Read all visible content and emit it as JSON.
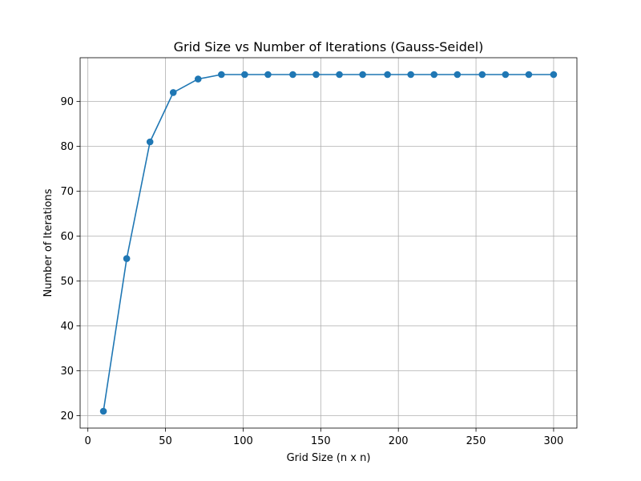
{
  "chart_data": {
    "type": "line",
    "title": "Grid Size vs Number of Iterations (Gauss-Seidel)",
    "xlabel": "Grid Size (n x n)",
    "ylabel": "Number of Iterations",
    "xlim": [
      -5,
      315
    ],
    "ylim": [
      17.25,
      99.75
    ],
    "xticks": [
      0,
      50,
      100,
      150,
      200,
      250,
      300
    ],
    "yticks": [
      20,
      30,
      40,
      50,
      60,
      70,
      80,
      90
    ],
    "grid": true,
    "series": [
      {
        "color": "#1f77b4",
        "marker": "circle",
        "x": [
          10,
          25,
          40,
          55,
          71,
          86,
          101,
          116,
          132,
          147,
          162,
          177,
          193,
          208,
          223,
          238,
          254,
          269,
          284,
          300
        ],
        "y": [
          21,
          55,
          81,
          92,
          95,
          96,
          96,
          96,
          96,
          96,
          96,
          96,
          96,
          96,
          96,
          96,
          96,
          96,
          96,
          96
        ]
      }
    ]
  }
}
